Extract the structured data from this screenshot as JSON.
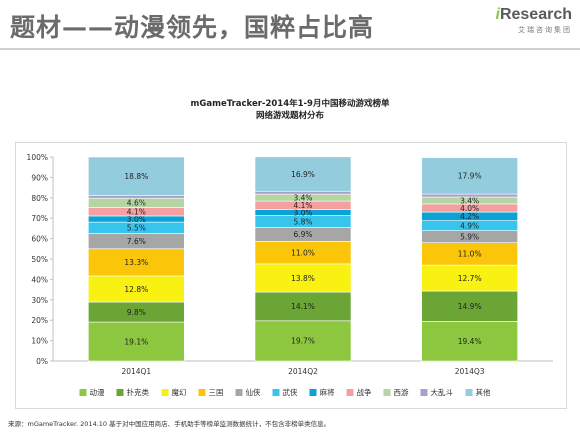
{
  "header": {
    "title": "题材——动漫领先，国粹占比高",
    "logo_text": "iResearch",
    "logo_subtext": "艾瑞咨询集团"
  },
  "footer": {
    "source": "来源：mGameTracker. 2014.10 基于对中国应用商店、手机助手等榜单监测数据统计，不包含非榜单类信息。"
  },
  "chart_data": {
    "type": "bar",
    "stacked": true,
    "percent": true,
    "title": "mGameTracker-2014年1-9月中国移动游戏榜单",
    "subtitle": "网络游戏题材分布",
    "categories": [
      "2014Q1",
      "2014Q2",
      "2014Q3"
    ],
    "ylim": [
      0,
      100
    ],
    "yticks": [
      "0%",
      "10%",
      "20%",
      "30%",
      "40%",
      "50%",
      "60%",
      "70%",
      "80%",
      "90%",
      "100%"
    ],
    "legend_position": "bottom",
    "series": [
      {
        "name": "动漫",
        "color": "#8dc63f",
        "values": [
          19.1,
          19.7,
          19.4
        ],
        "labels": [
          "19.1%",
          "19.7%",
          "19.4%"
        ]
      },
      {
        "name": "扑克类",
        "color": "#6aa535",
        "values": [
          9.8,
          14.1,
          14.9
        ],
        "labels": [
          "9.8%",
          "14.1%",
          "14.9%"
        ]
      },
      {
        "name": "魔幻",
        "color": "#f9f111",
        "values": [
          12.8,
          13.8,
          12.7
        ],
        "labels": [
          "12.8%",
          "13.8%",
          "12.7%"
        ]
      },
      {
        "name": "三国",
        "color": "#fbc609",
        "values": [
          13.3,
          11.0,
          11.0
        ],
        "labels": [
          "13.3%",
          "11.0%",
          "11.0%"
        ]
      },
      {
        "name": "仙侠",
        "color": "#a6a6a6",
        "values": [
          7.6,
          6.9,
          5.9
        ],
        "labels": [
          "7.6%",
          "6.9%",
          "5.9%"
        ]
      },
      {
        "name": "武侠",
        "color": "#37c5ee",
        "values": [
          5.5,
          5.8,
          4.9
        ],
        "labels": [
          "5.5%",
          "5.8%",
          "4.9%"
        ]
      },
      {
        "name": "麻将",
        "color": "#0ba3d6",
        "values": [
          3.0,
          3.0,
          4.2
        ],
        "labels": [
          "3.0%",
          "3.0%",
          "4.2%"
        ]
      },
      {
        "name": "战争",
        "color": "#f4a0a0",
        "values": [
          4.1,
          4.1,
          4.0
        ],
        "labels": [
          "4.1%",
          "4.1%",
          "4.0%"
        ]
      },
      {
        "name": "西游",
        "color": "#b5d6a4",
        "values": [
          4.6,
          3.4,
          3.4
        ],
        "labels": [
          "4.6%",
          "3.4%",
          "3.4%"
        ]
      },
      {
        "name": "大乱斗",
        "color": "#a99fcf",
        "values": [
          1.4,
          1.4,
          1.4
        ],
        "labels": [
          "",
          "",
          ""
        ]
      },
      {
        "name": "其他",
        "color": "#93cddd",
        "values": [
          18.8,
          16.9,
          17.9
        ],
        "labels": [
          "18.8%",
          "16.9%",
          "17.9%"
        ]
      }
    ]
  }
}
